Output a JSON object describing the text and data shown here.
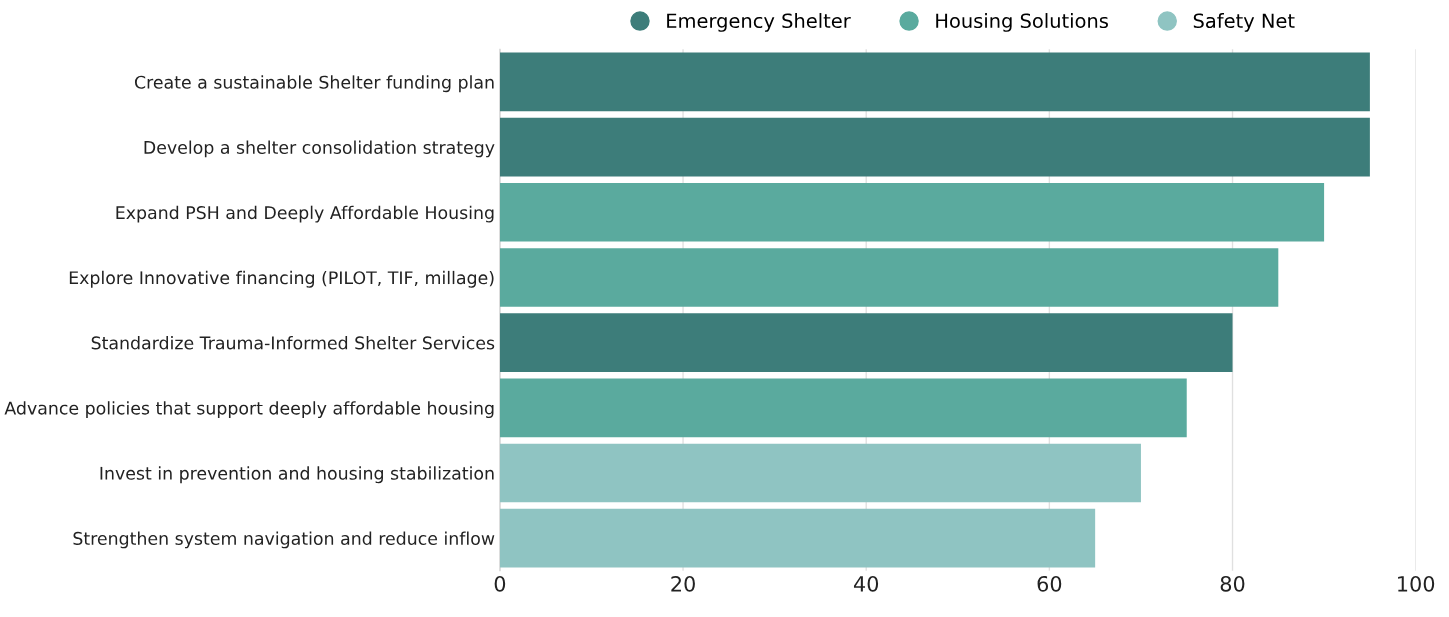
{
  "chart_data": {
    "type": "bar",
    "orientation": "horizontal",
    "categories": [
      "Create a sustainable Shelter funding plan",
      "Develop a shelter consolidation strategy",
      "Expand PSH and Deeply Affordable Housing",
      "Explore Innovative financing (PILOT, TIF, millage)",
      "Standardize Trauma-Informed Shelter Services",
      "Advance policies that support deeply affordable housing",
      "Invest in prevention and housing stabilization",
      "Strengthen system navigation and reduce inflow"
    ],
    "series": [
      {
        "name": "Emergency Shelter",
        "color": "#3d7d7a",
        "values": [
          95,
          95,
          null,
          null,
          80,
          null,
          null,
          null
        ]
      },
      {
        "name": "Housing Solutions",
        "color": "#5aaa9e",
        "values": [
          null,
          null,
          90,
          85,
          null,
          75,
          null,
          null
        ]
      },
      {
        "name": "Safety Net",
        "color": "#8fc4c2",
        "values": [
          null,
          null,
          null,
          null,
          null,
          null,
          70,
          65
        ]
      }
    ],
    "xlim": [
      0,
      100
    ],
    "xticks": [
      0,
      20,
      40,
      60,
      80,
      100
    ],
    "grid": "x",
    "legend": "top",
    "marker": "circle"
  }
}
